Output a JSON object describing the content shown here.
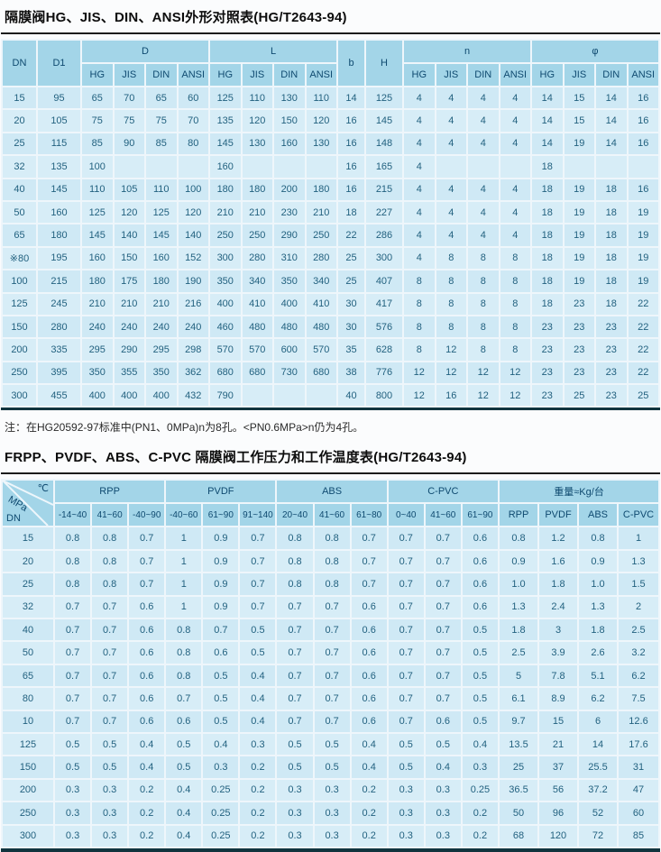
{
  "table1": {
    "title": "隔膜阀HG、JIS、DIN、ANSI外形对照表(HG/T2643-94)",
    "col_dn": "DN",
    "col_d1": "D1",
    "col_b": "b",
    "col_h": "H",
    "group_d": "D",
    "group_l": "L",
    "group_n": "n",
    "group_phi": "φ",
    "standards": [
      "HG",
      "JIS",
      "DIN",
      "ANSI"
    ],
    "rows": [
      [
        "15",
        "95",
        "65",
        "70",
        "65",
        "60",
        "125",
        "110",
        "130",
        "110",
        "14",
        "125",
        "4",
        "4",
        "4",
        "4",
        "14",
        "15",
        "14",
        "16"
      ],
      [
        "20",
        "105",
        "75",
        "75",
        "75",
        "70",
        "135",
        "120",
        "150",
        "120",
        "16",
        "145",
        "4",
        "4",
        "4",
        "4",
        "14",
        "15",
        "14",
        "16"
      ],
      [
        "25",
        "115",
        "85",
        "90",
        "85",
        "80",
        "145",
        "130",
        "160",
        "130",
        "16",
        "148",
        "4",
        "4",
        "4",
        "4",
        "14",
        "19",
        "14",
        "16"
      ],
      [
        "32",
        "135",
        "100",
        "",
        "",
        "",
        "160",
        "",
        "",
        "",
        "16",
        "165",
        "4",
        "",
        "",
        "",
        "18",
        "",
        "",
        ""
      ],
      [
        "40",
        "145",
        "110",
        "105",
        "110",
        "100",
        "180",
        "180",
        "200",
        "180",
        "16",
        "215",
        "4",
        "4",
        "4",
        "4",
        "18",
        "19",
        "18",
        "16"
      ],
      [
        "50",
        "160",
        "125",
        "120",
        "125",
        "120",
        "210",
        "210",
        "230",
        "210",
        "18",
        "227",
        "4",
        "4",
        "4",
        "4",
        "18",
        "19",
        "18",
        "19"
      ],
      [
        "65",
        "180",
        "145",
        "140",
        "145",
        "140",
        "250",
        "250",
        "290",
        "250",
        "22",
        "286",
        "4",
        "4",
        "4",
        "4",
        "18",
        "19",
        "18",
        "19"
      ],
      [
        "※80",
        "195",
        "160",
        "150",
        "160",
        "152",
        "300",
        "280",
        "310",
        "280",
        "25",
        "300",
        "4",
        "8",
        "8",
        "8",
        "18",
        "19",
        "18",
        "19"
      ],
      [
        "100",
        "215",
        "180",
        "175",
        "180",
        "190",
        "350",
        "340",
        "350",
        "340",
        "25",
        "407",
        "8",
        "8",
        "8",
        "8",
        "18",
        "19",
        "18",
        "19"
      ],
      [
        "125",
        "245",
        "210",
        "210",
        "210",
        "216",
        "400",
        "410",
        "400",
        "410",
        "30",
        "417",
        "8",
        "8",
        "8",
        "8",
        "18",
        "23",
        "18",
        "22"
      ],
      [
        "150",
        "280",
        "240",
        "240",
        "240",
        "240",
        "460",
        "480",
        "480",
        "480",
        "30",
        "576",
        "8",
        "8",
        "8",
        "8",
        "23",
        "23",
        "23",
        "22"
      ],
      [
        "200",
        "335",
        "295",
        "290",
        "295",
        "298",
        "570",
        "570",
        "600",
        "570",
        "35",
        "628",
        "8",
        "12",
        "8",
        "8",
        "23",
        "23",
        "23",
        "22"
      ],
      [
        "250",
        "395",
        "350",
        "355",
        "350",
        "362",
        "680",
        "680",
        "730",
        "680",
        "38",
        "776",
        "12",
        "12",
        "12",
        "12",
        "23",
        "23",
        "23",
        "22"
      ],
      [
        "300",
        "455",
        "400",
        "400",
        "400",
        "432",
        "790",
        "",
        "",
        "",
        "40",
        "800",
        "12",
        "16",
        "12",
        "12",
        "23",
        "25",
        "23",
        "25"
      ]
    ],
    "note": "注：在HG20592-97标准中(PN1、0MPa)n为8孔。<PN0.6MPa>n仍为4孔。"
  },
  "table2": {
    "title": "FRPP、PVDF、ABS、C-PVC 隔膜阀工作压力和工作温度表(HG/T2643-94)",
    "diag_top": "℃",
    "diag_mid": "MPa",
    "diag_bottom": "DN",
    "materials": [
      "RPP",
      "PVDF",
      "ABS",
      "C-PVC"
    ],
    "weight_header": "重量≈Kg/台",
    "temp_ranges": [
      "-14~40",
      "41~60",
      "-40~90",
      "-40~60",
      "61~90",
      "91~140",
      "20~40",
      "41~60",
      "61~80",
      "0~40",
      "41~60",
      "61~90"
    ],
    "rows": [
      [
        "15",
        "0.8",
        "0.8",
        "0.7",
        "1",
        "0.9",
        "0.7",
        "0.8",
        "0.8",
        "0.7",
        "0.7",
        "0.7",
        "0.6",
        "0.8",
        "1.2",
        "0.8",
        "1"
      ],
      [
        "20",
        "0.8",
        "0.8",
        "0.7",
        "1",
        "0.9",
        "0.7",
        "0.8",
        "0.8",
        "0.7",
        "0.7",
        "0.7",
        "0.6",
        "0.9",
        "1.6",
        "0.9",
        "1.3"
      ],
      [
        "25",
        "0.8",
        "0.8",
        "0.7",
        "1",
        "0.9",
        "0.7",
        "0.8",
        "0.8",
        "0.7",
        "0.7",
        "0.7",
        "0.6",
        "1.0",
        "1.8",
        "1.0",
        "1.5"
      ],
      [
        "32",
        "0.7",
        "0.7",
        "0.6",
        "1",
        "0.9",
        "0.7",
        "0.7",
        "0.7",
        "0.6",
        "0.7",
        "0.7",
        "0.6",
        "1.3",
        "2.4",
        "1.3",
        "2"
      ],
      [
        "40",
        "0.7",
        "0.7",
        "0.6",
        "0.8",
        "0.7",
        "0.5",
        "0.7",
        "0.7",
        "0.6",
        "0.7",
        "0.7",
        "0.5",
        "1.8",
        "3",
        "1.8",
        "2.5"
      ],
      [
        "50",
        "0.7",
        "0.7",
        "0.6",
        "0.8",
        "0.6",
        "0.5",
        "0.7",
        "0.7",
        "0.6",
        "0.7",
        "0.7",
        "0.5",
        "2.5",
        "3.9",
        "2.6",
        "3.2"
      ],
      [
        "65",
        "0.7",
        "0.7",
        "0.6",
        "0.8",
        "0.5",
        "0.4",
        "0.7",
        "0.7",
        "0.6",
        "0.7",
        "0.7",
        "0.5",
        "5",
        "7.8",
        "5.1",
        "6.2"
      ],
      [
        "80",
        "0.7",
        "0.7",
        "0.6",
        "0.7",
        "0.5",
        "0.4",
        "0.7",
        "0.7",
        "0.6",
        "0.7",
        "0.7",
        "0.5",
        "6.1",
        "8.9",
        "6.2",
        "7.5"
      ],
      [
        "10",
        "0.7",
        "0.7",
        "0.6",
        "0.6",
        "0.5",
        "0.4",
        "0.7",
        "0.7",
        "0.6",
        "0.7",
        "0.6",
        "0.5",
        "9.7",
        "15",
        "6",
        "12.6"
      ],
      [
        "125",
        "0.5",
        "0.5",
        "0.4",
        "0.5",
        "0.4",
        "0.3",
        "0.5",
        "0.5",
        "0.4",
        "0.5",
        "0.5",
        "0.4",
        "13.5",
        "21",
        "14",
        "17.6"
      ],
      [
        "150",
        "0.5",
        "0.5",
        "0.4",
        "0.5",
        "0.3",
        "0.2",
        "0.5",
        "0.5",
        "0.4",
        "0.5",
        "0.4",
        "0.3",
        "25",
        "37",
        "25.5",
        "31"
      ],
      [
        "200",
        "0.3",
        "0.3",
        "0.2",
        "0.4",
        "0.25",
        "0.2",
        "0.3",
        "0.3",
        "0.2",
        "0.3",
        "0.3",
        "0.25",
        "36.5",
        "56",
        "37.2",
        "47"
      ],
      [
        "250",
        "0.3",
        "0.3",
        "0.2",
        "0.4",
        "0.25",
        "0.2",
        "0.3",
        "0.3",
        "0.2",
        "0.3",
        "0.3",
        "0.2",
        "50",
        "96",
        "52",
        "60"
      ],
      [
        "300",
        "0.3",
        "0.3",
        "0.2",
        "0.4",
        "0.25",
        "0.2",
        "0.3",
        "0.3",
        "0.2",
        "0.3",
        "0.3",
        "0.2",
        "68",
        "120",
        "72",
        "85"
      ]
    ]
  },
  "colors": {
    "header_bg": "#a3d5e8",
    "cell_bg": "#cfe9f5",
    "cell_alt_bg": "#d7edf7",
    "text": "#22617f",
    "header_text": "#0f4a70",
    "rule": "#1c1c1c"
  }
}
